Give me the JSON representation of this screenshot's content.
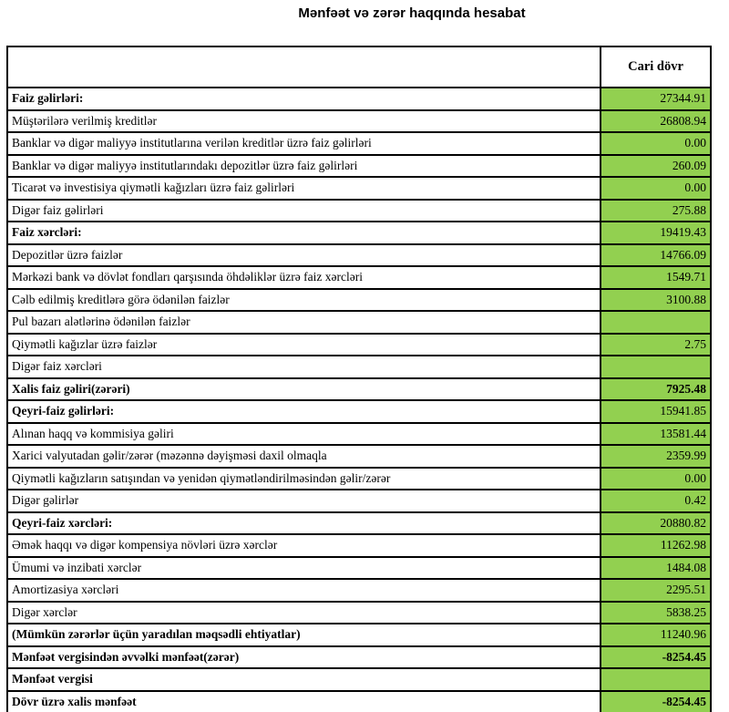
{
  "page": {
    "title": "Mənfəət və zərər haqqında hesabat"
  },
  "table": {
    "header": {
      "label_column": "",
      "value_column": "Cari dövr"
    },
    "colors": {
      "value_cell_bg": "#92D050",
      "border": "#000000",
      "text": "#000000"
    },
    "rows": [
      {
        "label": "Faiz gəlirləri:",
        "value": "27344.91",
        "label_bold": true,
        "value_bold": false
      },
      {
        "label": "Müştərilərə verilmiş kreditlər",
        "value": "26808.94",
        "label_bold": false,
        "value_bold": false
      },
      {
        "label": "Banklar və digər maliyyə institutlarına verilən kreditlər üzrə faiz gəlirləri",
        "value": "0.00",
        "label_bold": false,
        "value_bold": false
      },
      {
        "label": "Banklar və digər maliyyə institutlarındakı depozitlər üzrə faiz gəlirləri",
        "value": "260.09",
        "label_bold": false,
        "value_bold": false
      },
      {
        "label": "Ticarət və investisiya qiymətli kağızları üzrə faiz gəlirləri",
        "value": "0.00",
        "label_bold": false,
        "value_bold": false
      },
      {
        "label": "Digər faiz gəlirləri",
        "value": "275.88",
        "label_bold": false,
        "value_bold": false
      },
      {
        "label": "Faiz xərcləri:",
        "value": "19419.43",
        "label_bold": true,
        "value_bold": false
      },
      {
        "label": "Depozitlər üzrə faizlər",
        "value": "14766.09",
        "label_bold": false,
        "value_bold": false
      },
      {
        "label": "Mərkəzi bank və dövlət fondları qarşısında öhdəliklər üzrə faiz xərcləri",
        "value": "1549.71",
        "label_bold": false,
        "value_bold": false
      },
      {
        "label": "Cəlb edilmiş kreditlərə görə ödənilən faizlər",
        "value": "3100.88",
        "label_bold": false,
        "value_bold": false
      },
      {
        "label": "Pul bazarı alətlərinə ödənilən faizlər",
        "value": "",
        "label_bold": false,
        "value_bold": false
      },
      {
        "label": "Qiymətli kağızlar üzrə faizlər",
        "value": "2.75",
        "label_bold": false,
        "value_bold": false
      },
      {
        "label": "Digər faiz xərcləri",
        "value": "",
        "label_bold": false,
        "value_bold": false
      },
      {
        "label": "Xalis faiz gəliri(zərəri)",
        "value": "7925.48",
        "label_bold": true,
        "value_bold": true
      },
      {
        "label": "Qeyri-faiz gəlirləri:",
        "value": "15941.85",
        "label_bold": true,
        "value_bold": false
      },
      {
        "label": "Alınan haqq və kommisiya gəliri",
        "value": "13581.44",
        "label_bold": false,
        "value_bold": false
      },
      {
        "label": "Xarici valyutadan gəlir/zərər (məzənnə dəyişməsi daxil olmaqla",
        "value": "2359.99",
        "label_bold": false,
        "value_bold": false
      },
      {
        "label": "Qiymətli kağızların satışından və yenidən qiymətləndirilməsindən gəlir/zərər",
        "value": "0.00",
        "label_bold": false,
        "value_bold": false
      },
      {
        "label": "Digər gəlirlər",
        "value": "0.42",
        "label_bold": false,
        "value_bold": false
      },
      {
        "label": "Qeyri-faiz xərcləri:",
        "value": "20880.82",
        "label_bold": true,
        "value_bold": false
      },
      {
        "label": "Əmək haqqı və digər kompensiya növləri üzrə xərclər",
        "value": "11262.98",
        "label_bold": false,
        "value_bold": false
      },
      {
        "label": "Ümumi və inzibati xərclər",
        "value": "1484.08",
        "label_bold": false,
        "value_bold": false
      },
      {
        "label": "Amortizasiya xərcləri",
        "value": "2295.51",
        "label_bold": false,
        "value_bold": false
      },
      {
        "label": "Digər xərclər",
        "value": "5838.25",
        "label_bold": false,
        "value_bold": false
      },
      {
        "label": "(Mümkün zərərlər üçün yaradılan məqsədli ehtiyatlar)",
        "value": "11240.96",
        "label_bold": true,
        "value_bold": false
      },
      {
        "label": "Mənfəət vergisindən əvvəlki mənfəət(zərər)",
        "value": "-8254.45",
        "label_bold": true,
        "value_bold": true
      },
      {
        "label": "Mənfəət vergisi",
        "value": "",
        "label_bold": true,
        "value_bold": false
      },
      {
        "label": "Dövr üzrə xalis mənfəət",
        "value": "-8254.45",
        "label_bold": true,
        "value_bold": true
      }
    ]
  }
}
